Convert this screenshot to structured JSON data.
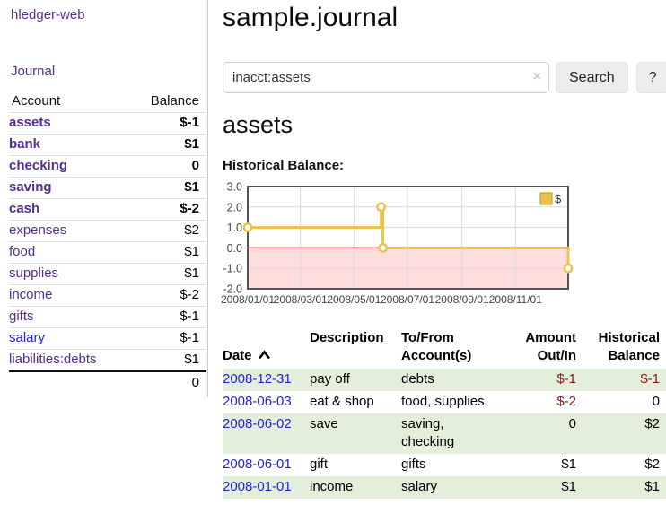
{
  "brand": {
    "label": "hledger-web"
  },
  "nav": {
    "journal_label": "Journal"
  },
  "sidebar": {
    "account_header": "Account",
    "balance_header": "Balance",
    "accounts": [
      {
        "name": "assets",
        "balance": "$-1",
        "depth": 1,
        "bold": true,
        "balance_tone": "neg-strong",
        "link_tone": "purple"
      },
      {
        "name": "bank",
        "balance": "$1",
        "depth": 2,
        "bold": true,
        "balance_tone": "plain",
        "link_tone": "purple"
      },
      {
        "name": "checking",
        "balance": "0",
        "depth": 3,
        "bold": true,
        "balance_tone": "plain",
        "link_tone": "purple"
      },
      {
        "name": "saving",
        "balance": "$1",
        "depth": 3,
        "bold": true,
        "balance_tone": "plain",
        "link_tone": "purple"
      },
      {
        "name": "cash",
        "balance": "$-2",
        "depth": 2,
        "bold": true,
        "balance_tone": "neg-strong",
        "link_tone": "purple"
      },
      {
        "name": "expenses",
        "balance": "$2",
        "depth": 1,
        "bold": false,
        "balance_tone": "plain",
        "link_tone": "purple"
      },
      {
        "name": "food",
        "balance": "$1",
        "depth": 2,
        "bold": false,
        "balance_tone": "plain",
        "link_tone": "purple"
      },
      {
        "name": "supplies",
        "balance": "$1",
        "depth": 2,
        "bold": false,
        "balance_tone": "plain",
        "link_tone": "purple"
      },
      {
        "name": "income",
        "balance": "$-2",
        "depth": 1,
        "bold": false,
        "balance_tone": "neg-faded",
        "link_tone": "purple"
      },
      {
        "name": "gifts",
        "balance": "$-1",
        "depth": 2,
        "bold": false,
        "balance_tone": "neg-faded",
        "link_tone": "purple"
      },
      {
        "name": "salary",
        "balance": "$-1",
        "depth": 2,
        "bold": false,
        "balance_tone": "neg-faded",
        "link_tone": "blue"
      },
      {
        "name": "liabilities:debts",
        "balance": "$1",
        "depth": 1,
        "bold": false,
        "balance_tone": "plain",
        "link_tone": "purple"
      }
    ],
    "total": "0"
  },
  "page": {
    "title": "sample.journal",
    "account_title": "assets",
    "chart_heading": "Historical Balance:"
  },
  "search": {
    "value": "inacct:assets",
    "clear_label": "×",
    "button_label": "Search",
    "help_label": "?"
  },
  "chart_data": {
    "type": "line",
    "title": "Historical Balance",
    "series": [
      {
        "name": "$",
        "color": "#e9c34e",
        "step": true,
        "points": [
          [
            "2008-01-01",
            1
          ],
          [
            "2008-06-01",
            2
          ],
          [
            "2008-06-03",
            0
          ],
          [
            "2008-12-31",
            -1
          ]
        ]
      }
    ],
    "x_ticks": [
      "2008/01/01",
      "2008/03/01",
      "2008/05/01",
      "2008/07/01",
      "2008/09/01",
      "2008/11/01"
    ],
    "y_ticks": [
      3.0,
      2.0,
      1.0,
      0.0,
      -1.0,
      -2.0
    ],
    "xlim": [
      "2008-01-01",
      "2008-12-31"
    ],
    "ylim": [
      -2,
      3
    ],
    "grid": true,
    "legend_position": "top-right",
    "negative_region_color": "#ffdddd",
    "zero_line_color": "#8b0000",
    "grid_color": "#d9d9d9",
    "border_color": "#545454"
  },
  "register": {
    "headers": {
      "date": "Date",
      "description": "Description",
      "accounts": "To/From\nAccount(s)",
      "amount": "Amount\nOut/In",
      "balance": "Historical\nBalance"
    },
    "sort_icon": "chevron-up",
    "rows": [
      {
        "date": "2008-12-31",
        "description": "pay off",
        "accounts": "debts",
        "amount": "$-1",
        "balance": "$-1",
        "amount_tone": "neg-strong",
        "balance_tone": "neg-strong"
      },
      {
        "date": "2008-06-03",
        "description": "eat & shop",
        "accounts": "food, supplies",
        "amount": "$-2",
        "balance": "0",
        "amount_tone": "neg-strong",
        "balance_tone": "plain"
      },
      {
        "date": "2008-06-02",
        "description": "save",
        "accounts": "saving,\nchecking",
        "amount": "0",
        "balance": "$2",
        "amount_tone": "plain",
        "balance_tone": "plain"
      },
      {
        "date": "2008-06-01",
        "description": "gift",
        "accounts": "gifts",
        "amount": "$1",
        "balance": "$2",
        "amount_tone": "plain",
        "balance_tone": "plain"
      },
      {
        "date": "2008-01-01",
        "description": "income",
        "accounts": "salary",
        "amount": "$1",
        "balance": "$1",
        "amount_tone": "plain",
        "balance_tone": "plain"
      }
    ]
  },
  "colors": {
    "link_purple": "#552e8f",
    "link_blue": "#2222dd",
    "negative_strong": "#7d1a1a",
    "negative_faded": "#c9898e",
    "striped_row_green": "#e3eedb",
    "series_yellow": "#e9c34e"
  }
}
